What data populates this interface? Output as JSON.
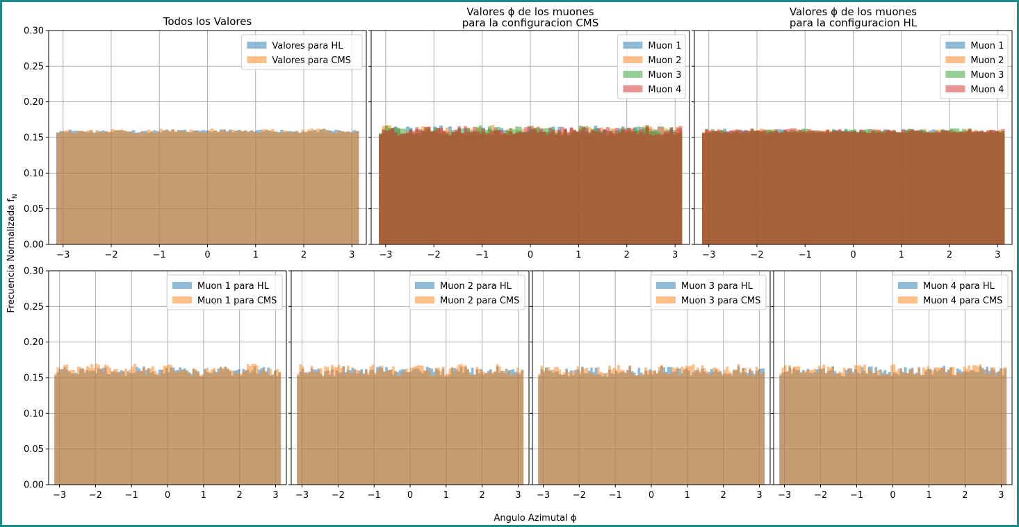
{
  "figure": {
    "ylabel": "Frecuencia Normalizada f",
    "ylabel_sub": "N",
    "xlabel": "Angulo Azimutal ϕ"
  },
  "chart_data": [
    {
      "type": "bar",
      "title": "Todos los Valores",
      "xlim": [
        -3.3,
        3.3
      ],
      "ylim": [
        0,
        0.3
      ],
      "xticks": [
        "−3",
        "−2",
        "−1",
        "0",
        "1",
        "2",
        "3"
      ],
      "yticks": [
        "0.00",
        "0.05",
        "0.10",
        "0.15",
        "0.20",
        "0.25",
        "0.30"
      ],
      "grid": true,
      "legend_position": "top-right",
      "bins": {
        "start": -3.1416,
        "end": 3.1416,
        "count": 100
      },
      "series": [
        {
          "name": "Valores para HL",
          "color": "#1f77b4",
          "base": 0.159,
          "amp": 0.002,
          "seed": 11
        },
        {
          "name": "Valores para CMS",
          "color": "#ff7f0e",
          "base": 0.159,
          "amp": 0.003,
          "seed": 23
        }
      ]
    },
    {
      "type": "bar",
      "title": "Valores ϕ de los muones",
      "subtitle": "para la configuracion CMS",
      "xlim": [
        -3.3,
        3.3
      ],
      "ylim": [
        0,
        0.3
      ],
      "xticks": [
        "−3",
        "−2",
        "−1",
        "0",
        "1",
        "2",
        "3"
      ],
      "yticks": [
        "0.00",
        "0.05",
        "0.10",
        "0.15",
        "0.20",
        "0.25",
        "0.30"
      ],
      "grid": true,
      "legend_position": "top-right",
      "bins": {
        "start": -3.1416,
        "end": 3.1416,
        "count": 100
      },
      "series": [
        {
          "name": "Muon 1",
          "color": "#1f77b4",
          "base": 0.16,
          "amp": 0.006,
          "seed": 31
        },
        {
          "name": "Muon 2",
          "color": "#ff7f0e",
          "base": 0.16,
          "amp": 0.006,
          "seed": 37
        },
        {
          "name": "Muon 3",
          "color": "#2ca02c",
          "base": 0.16,
          "amp": 0.006,
          "seed": 41
        },
        {
          "name": "Muon 4",
          "color": "#d62728",
          "base": 0.16,
          "amp": 0.006,
          "seed": 43
        }
      ]
    },
    {
      "type": "bar",
      "title": "Valores ϕ de los muones",
      "subtitle": "para la configuracion HL",
      "xlim": [
        -3.3,
        3.3
      ],
      "ylim": [
        0,
        0.3
      ],
      "xticks": [
        "−3",
        "−2",
        "−1",
        "0",
        "1",
        "2",
        "3"
      ],
      "yticks": [
        "0.00",
        "0.05",
        "0.10",
        "0.15",
        "0.20",
        "0.25",
        "0.30"
      ],
      "grid": true,
      "legend_position": "top-right",
      "bins": {
        "start": -3.1416,
        "end": 3.1416,
        "count": 100
      },
      "series": [
        {
          "name": "Muon 1",
          "color": "#1f77b4",
          "base": 0.159,
          "amp": 0.003,
          "seed": 53
        },
        {
          "name": "Muon 2",
          "color": "#ff7f0e",
          "base": 0.159,
          "amp": 0.003,
          "seed": 59
        },
        {
          "name": "Muon 3",
          "color": "#2ca02c",
          "base": 0.159,
          "amp": 0.003,
          "seed": 61
        },
        {
          "name": "Muon 4",
          "color": "#d62728",
          "base": 0.159,
          "amp": 0.003,
          "seed": 67
        }
      ]
    },
    {
      "type": "bar",
      "title": "",
      "xlim": [
        -3.3,
        3.3
      ],
      "ylim": [
        0,
        0.3
      ],
      "xticks": [
        "−3",
        "−2",
        "−1",
        "0",
        "1",
        "2",
        "3"
      ],
      "yticks": [
        "0.00",
        "0.05",
        "0.10",
        "0.15",
        "0.20",
        "0.25",
        "0.30"
      ],
      "grid": true,
      "legend_position": "top-right",
      "bins": {
        "start": -3.1416,
        "end": 3.1416,
        "count": 100
      },
      "series": [
        {
          "name": "Muon 1 para HL",
          "color": "#1f77b4",
          "base": 0.159,
          "amp": 0.006,
          "seed": 71
        },
        {
          "name": "Muon 1 para CMS",
          "color": "#ff7f0e",
          "base": 0.161,
          "amp": 0.007,
          "seed": 73
        }
      ]
    },
    {
      "type": "bar",
      "title": "",
      "xlim": [
        -3.3,
        3.3
      ],
      "ylim": [
        0,
        0.3
      ],
      "xticks": [
        "−3",
        "−2",
        "−1",
        "0",
        "1",
        "2",
        "3"
      ],
      "yticks": [
        "0.00",
        "0.05",
        "0.10",
        "0.15",
        "0.20",
        "0.25",
        "0.30"
      ],
      "grid": true,
      "legend_position": "top-right",
      "bins": {
        "start": -3.1416,
        "end": 3.1416,
        "count": 100
      },
      "series": [
        {
          "name": "Muon 2 para HL",
          "color": "#1f77b4",
          "base": 0.159,
          "amp": 0.006,
          "seed": 79
        },
        {
          "name": "Muon 2 para CMS",
          "color": "#ff7f0e",
          "base": 0.161,
          "amp": 0.007,
          "seed": 83
        }
      ]
    },
    {
      "type": "bar",
      "title": "",
      "xlim": [
        -3.3,
        3.3
      ],
      "ylim": [
        0,
        0.3
      ],
      "xticks": [
        "−3",
        "−2",
        "−1",
        "0",
        "1",
        "2",
        "3"
      ],
      "yticks": [
        "0.00",
        "0.05",
        "0.10",
        "0.15",
        "0.20",
        "0.25",
        "0.30"
      ],
      "grid": true,
      "legend_position": "top-right",
      "bins": {
        "start": -3.1416,
        "end": 3.1416,
        "count": 100
      },
      "series": [
        {
          "name": "Muon 3 para HL",
          "color": "#1f77b4",
          "base": 0.159,
          "amp": 0.006,
          "seed": 89
        },
        {
          "name": "Muon 3 para CMS",
          "color": "#ff7f0e",
          "base": 0.161,
          "amp": 0.007,
          "seed": 97
        }
      ]
    },
    {
      "type": "bar",
      "title": "",
      "xlim": [
        -3.3,
        3.3
      ],
      "ylim": [
        0,
        0.3
      ],
      "xticks": [
        "−3",
        "−2",
        "−1",
        "0",
        "1",
        "2",
        "3"
      ],
      "yticks": [
        "0.00",
        "0.05",
        "0.10",
        "0.15",
        "0.20",
        "0.25",
        "0.30"
      ],
      "grid": true,
      "legend_position": "top-right",
      "bins": {
        "start": -3.1416,
        "end": 3.1416,
        "count": 100
      },
      "series": [
        {
          "name": "Muon 4 para HL",
          "color": "#1f77b4",
          "base": 0.159,
          "amp": 0.006,
          "seed": 101
        },
        {
          "name": "Muon 4 para CMS",
          "color": "#ff7f0e",
          "base": 0.161,
          "amp": 0.007,
          "seed": 103
        }
      ]
    }
  ]
}
